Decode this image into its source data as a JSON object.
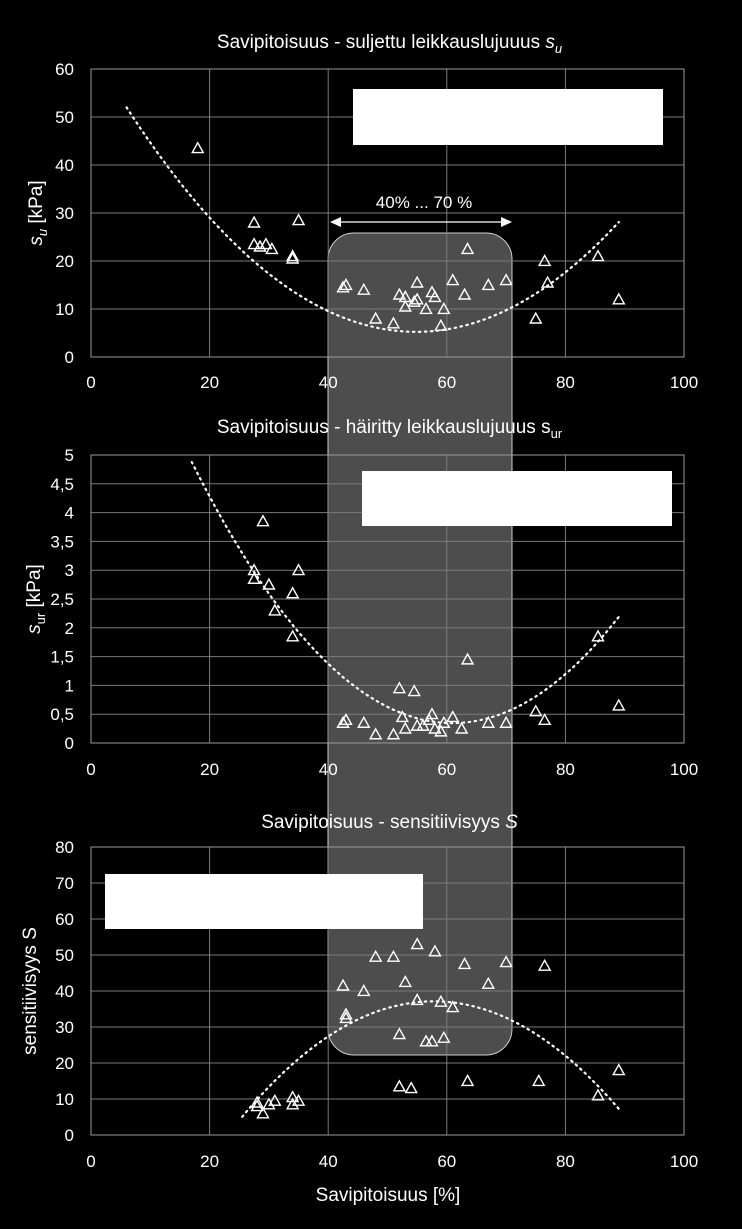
{
  "colors": {
    "background": "#000000",
    "foreground": "#ffffff",
    "highlight_band": "#5a5a5a"
  },
  "annotation": {
    "range_label": "40% ... 70 %",
    "range": [
      40,
      70
    ]
  },
  "shared_xlabel": "Savipitoisuus [%]",
  "chart_data": [
    {
      "type": "scatter",
      "title": "Savipitoisuus - suljettu leikkauslujuuus ",
      "title_symbol": "s",
      "title_sub": "u",
      "ylabel_symbol": "s",
      "ylabel_sub": "u",
      "ylabel_unit": " [kPa]",
      "xlim": [
        0,
        100
      ],
      "ylim": [
        0,
        60
      ],
      "xticks": [
        "0",
        "20",
        "40",
        "60",
        "80",
        "100"
      ],
      "yticks": [
        "0",
        "10",
        "20",
        "30",
        "40",
        "50",
        "60"
      ],
      "grid": true,
      "marker": "triangle",
      "trendline": "polynomial",
      "trend_coeffs": [
        64.2,
        -2.15,
        0.0196
      ],
      "trend_range": [
        6,
        89
      ],
      "points": [
        [
          18,
          43.5
        ],
        [
          27.5,
          28
        ],
        [
          27.5,
          23.5
        ],
        [
          28.5,
          23
        ],
        [
          29.5,
          23.5
        ],
        [
          30.5,
          22.5
        ],
        [
          34,
          21
        ],
        [
          34,
          20.5
        ],
        [
          35,
          28.5
        ],
        [
          42.5,
          14.5
        ],
        [
          43,
          15
        ],
        [
          46,
          14
        ],
        [
          48,
          8
        ],
        [
          51,
          7
        ],
        [
          52,
          13
        ],
        [
          53,
          12.5
        ],
        [
          53,
          10.5
        ],
        [
          54.5,
          11.5
        ],
        [
          55,
          12
        ],
        [
          55,
          15.5
        ],
        [
          56.5,
          10
        ],
        [
          57.5,
          13.5
        ],
        [
          58,
          12.5
        ],
        [
          59,
          6.5
        ],
        [
          59.5,
          10
        ],
        [
          61,
          16
        ],
        [
          63,
          13
        ],
        [
          63.5,
          22.5
        ],
        [
          67,
          15
        ],
        [
          70,
          16
        ],
        [
          75,
          8
        ],
        [
          76.5,
          20
        ],
        [
          77,
          15.5
        ],
        [
          85.5,
          21
        ],
        [
          89,
          12
        ]
      ]
    },
    {
      "type": "scatter",
      "title": "Savipitoisuus - häiritty leikkauslujuuus s",
      "title_sub": "ur",
      "ylabel_symbol": "s",
      "ylabel_sub": "ur",
      "ylabel_unit": " [kPa]",
      "xlim": [
        0,
        100
      ],
      "ylim": [
        0,
        5
      ],
      "xticks": [
        "0",
        "20",
        "40",
        "60",
        "80",
        "100"
      ],
      "yticks": [
        "0",
        "0,5",
        "1",
        "1,5",
        "2",
        "2,5",
        "3",
        "3,5",
        "4",
        "4,5",
        "5"
      ],
      "grid": true,
      "marker": "triangle",
      "trendline": "polynomial",
      "trend_coeffs": [
        9.06,
        -0.2859,
        0.002345
      ],
      "trend_range": [
        17,
        89
      ],
      "points": [
        [
          27.5,
          3
        ],
        [
          27.5,
          2.85
        ],
        [
          29,
          3.85
        ],
        [
          30,
          2.75
        ],
        [
          31,
          2.3
        ],
        [
          34,
          2.6
        ],
        [
          34,
          1.85
        ],
        [
          35,
          3
        ],
        [
          42.5,
          0.35
        ],
        [
          43,
          0.4
        ],
        [
          46,
          0.35
        ],
        [
          48,
          0.15
        ],
        [
          51,
          0.15
        ],
        [
          52,
          0.95
        ],
        [
          52.5,
          0.45
        ],
        [
          53,
          0.25
        ],
        [
          54.5,
          0.9
        ],
        [
          55,
          0.3
        ],
        [
          56,
          0.3
        ],
        [
          57,
          0.4
        ],
        [
          57.5,
          0.5
        ],
        [
          58,
          0.25
        ],
        [
          59,
          0.2
        ],
        [
          59.5,
          0.35
        ],
        [
          61,
          0.45
        ],
        [
          62.5,
          0.25
        ],
        [
          63.5,
          1.45
        ],
        [
          67,
          0.35
        ],
        [
          70,
          0.35
        ],
        [
          75,
          0.55
        ],
        [
          76.5,
          0.4
        ],
        [
          85.5,
          1.85
        ],
        [
          89,
          0.65
        ]
      ]
    },
    {
      "type": "scatter",
      "title": "Savipitoisuus - sensitiivisyys ",
      "title_symbol": "S",
      "ylabel_symbol": "",
      "ylabel_text": "sensitiivisyys S",
      "xlim": [
        0,
        100
      ],
      "ylim": [
        0,
        80
      ],
      "xticks": [
        "0",
        "20",
        "40",
        "60",
        "80",
        "100"
      ],
      "yticks": [
        "0",
        "10",
        "20",
        "30",
        "40",
        "50",
        "60",
        "70",
        "80"
      ],
      "grid": true,
      "marker": "triangle",
      "trendline": "polynomial",
      "trend_coeffs": [
        -65.5,
        3.55,
        -0.0307
      ],
      "trend_range": [
        25.5,
        89
      ],
      "points": [
        [
          28,
          9
        ],
        [
          28,
          8
        ],
        [
          29,
          6
        ],
        [
          30,
          8.5
        ],
        [
          31,
          9.5
        ],
        [
          34,
          10.5
        ],
        [
          34,
          8.5
        ],
        [
          35,
          9.5
        ],
        [
          42.5,
          41.5
        ],
        [
          43,
          33.5
        ],
        [
          43,
          32.5
        ],
        [
          46,
          40
        ],
        [
          48,
          49.5
        ],
        [
          51,
          49.5
        ],
        [
          52,
          28
        ],
        [
          52,
          13.5
        ],
        [
          53,
          42.5
        ],
        [
          54,
          13
        ],
        [
          55,
          37.5
        ],
        [
          55,
          53
        ],
        [
          56.5,
          26
        ],
        [
          57.5,
          26
        ],
        [
          58,
          51
        ],
        [
          59,
          37
        ],
        [
          59.5,
          27
        ],
        [
          61,
          35.5
        ],
        [
          63,
          47.5
        ],
        [
          63.5,
          15
        ],
        [
          67,
          42
        ],
        [
          70,
          48
        ],
        [
          75.5,
          15
        ],
        [
          76.5,
          47
        ],
        [
          85.5,
          11
        ],
        [
          89,
          18
        ]
      ]
    }
  ]
}
